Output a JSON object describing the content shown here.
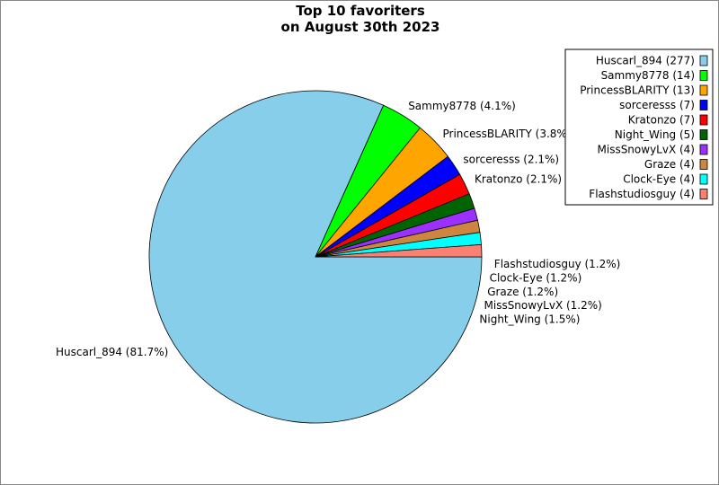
{
  "chart_data": {
    "type": "pie",
    "title": [
      "Top 10 favoriters",
      "on August 30th 2023"
    ],
    "legend_position": "top-right",
    "slices": [
      {
        "name": "Huscarl_894",
        "count": 277,
        "percent": "81.7%",
        "color": "#87CEEB"
      },
      {
        "name": "Sammy8778",
        "count": 14,
        "percent": "4.1%",
        "color": "#00FF00"
      },
      {
        "name": "PrincessBLARITY",
        "count": 13,
        "percent": "3.8%",
        "color": "#FFA500"
      },
      {
        "name": "sorceresss",
        "count": 7,
        "percent": "2.1%",
        "color": "#0000FF"
      },
      {
        "name": "Kratonzo",
        "count": 7,
        "percent": "2.1%",
        "color": "#FF0000"
      },
      {
        "name": "Night_Wing",
        "count": 5,
        "percent": "1.5%",
        "color": "#006400"
      },
      {
        "name": "MissSnowyLvX",
        "count": 4,
        "percent": "1.2%",
        "color": "#9B30FF"
      },
      {
        "name": "Graze",
        "count": 4,
        "percent": "1.2%",
        "color": "#CD853F"
      },
      {
        "name": "Clock-Eye",
        "count": 4,
        "percent": "1.2%",
        "color": "#00FFFF"
      },
      {
        "name": "Flashstudiosguy",
        "count": 4,
        "percent": "1.2%",
        "color": "#FA8072"
      }
    ]
  }
}
